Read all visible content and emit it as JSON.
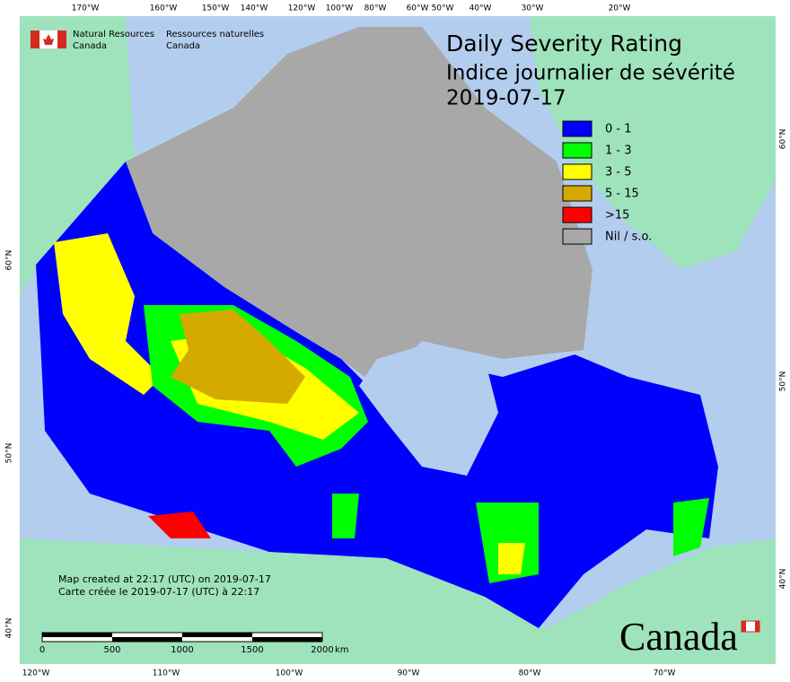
{
  "header": {
    "agency_en": [
      "Natural Resources",
      "Canada"
    ],
    "agency_fr": [
      "Ressources naturelles",
      "Canada"
    ]
  },
  "title": [
    "Daily Severity Rating",
    "Indice journalier de sévérité",
    "2019-07-17"
  ],
  "legend": [
    {
      "label": "0 - 1",
      "color": "#0000ff"
    },
    {
      "label": "1 - 3",
      "color": "#00ff00"
    },
    {
      "label": "3 - 5",
      "color": "#ffff00"
    },
    {
      "label": "5 - 15",
      "color": "#d4aa00"
    },
    {
      "label": ">15",
      "color": "#ff0000"
    },
    {
      "label": "Nil / s.o.",
      "color": "#a8a8a8"
    }
  ],
  "top_labels": [
    "170°W",
    "160°W",
    "150°W",
    "140°W",
    "120°W",
    "100°W",
    "80°W",
    "60°W",
    "50°W",
    "40°W",
    "30°W",
    "20°W"
  ],
  "bottom_labels": [
    "120°W",
    "110°W",
    "100°W",
    "90°W",
    "80°W",
    "70°W"
  ],
  "left_labels": [
    "60°N",
    "50°N",
    "40°N"
  ],
  "right_labels": [
    "60°N",
    "50°N",
    "40°N"
  ],
  "scale": {
    "labels": [
      "0",
      "500",
      "1000",
      "1500",
      "2000"
    ],
    "unit": "km"
  },
  "credits": [
    "Map created at 22:17 (UTC) on 2019-07-17",
    "Carte créée le 2019-07-17 (UTC) à 22:17"
  ],
  "wordmark": "Canada"
}
